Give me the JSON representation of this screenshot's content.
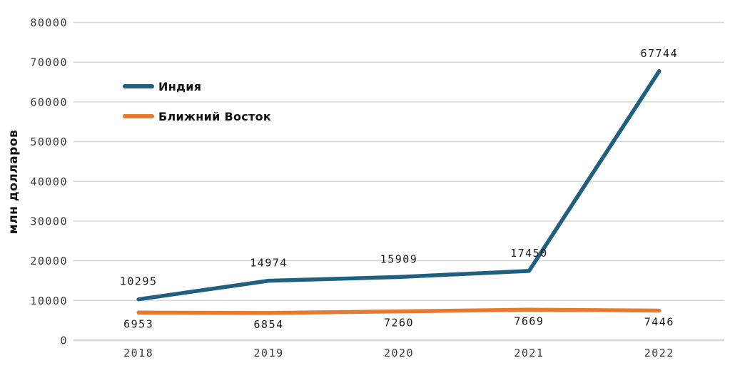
{
  "chart_data": {
    "type": "line",
    "title": "",
    "xlabel": "",
    "ylabel": "млн долларов",
    "categories": [
      "2018",
      "2019",
      "2020",
      "2021",
      "2022"
    ],
    "series": [
      {
        "name": "Индия",
        "color": "#20607e",
        "values": [
          10295,
          14974,
          15909,
          17450,
          67744
        ],
        "data_labels": [
          "10295",
          "14974",
          "15909",
          "17450",
          "67744"
        ],
        "label_position": "above"
      },
      {
        "name": "Ближний Восток",
        "color": "#e87a30",
        "values": [
          6953,
          6854,
          7260,
          7669,
          7446
        ],
        "data_labels": [
          "6953",
          "6854",
          "7260",
          "7669",
          "7446"
        ],
        "label_position": "below"
      }
    ],
    "y_axis": {
      "min": 0,
      "max": 80000,
      "step": 10000,
      "tick_labels": [
        "0",
        "10000",
        "20000",
        "30000",
        "40000",
        "50000",
        "60000",
        "70000",
        "80000"
      ]
    },
    "grid": true,
    "legend_position": "upper-left-inside",
    "show_data_labels": true
  },
  "colors": {
    "background": "#ffffff",
    "gridline": "#d9d9d9",
    "zero_line": "#d6d6d6",
    "tick_text": "#3a3a3a",
    "label_text": "#1a1a1a"
  }
}
